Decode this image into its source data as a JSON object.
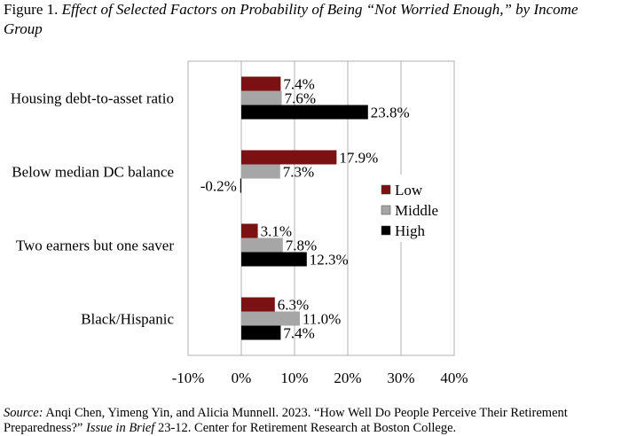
{
  "figure": {
    "label": "Figure 1.",
    "title": "Effect of Selected Factors on Probability of Being “Not Worried Enough,” by Income Group"
  },
  "source": {
    "prefix": "Source:",
    "text_1": " Anqi Chen, Yimeng Yin, and Alicia Munnell. 2023. “How Well Do People Perceive Their Retirement Preparedness?” ",
    "pub": "Issue in Brief",
    "text_2": " 23-12. Center for Retirement Research at Boston College."
  },
  "chart_data": {
    "type": "bar",
    "orientation": "horizontal",
    "categories": [
      "Housing debt-to-asset ratio",
      "Below median DC balance",
      "Two earners but one saver",
      "Black/Hispanic"
    ],
    "series": [
      {
        "name": "Low",
        "color": "#7b1113",
        "values": [
          7.4,
          17.9,
          3.1,
          6.3
        ]
      },
      {
        "name": "Middle",
        "color": "#a6a6a6",
        "values": [
          7.6,
          7.3,
          7.8,
          11.0
        ]
      },
      {
        "name": "High",
        "color": "#000000",
        "values": [
          23.8,
          -0.2,
          12.3,
          7.4
        ]
      }
    ],
    "value_labels": [
      [
        "7.4%",
        "7.6%",
        "23.8%"
      ],
      [
        "17.9%",
        "7.3%",
        "-0.2%"
      ],
      [
        "3.1%",
        "7.8%",
        "12.3%"
      ],
      [
        "6.3%",
        "11.0%",
        "7.4%"
      ]
    ],
    "xlim": [
      -10,
      40
    ],
    "xticks": [
      -10,
      0,
      10,
      20,
      30,
      40
    ],
    "xtick_labels": [
      "-10%",
      "0%",
      "10%",
      "20%",
      "30%",
      "40%"
    ],
    "grid": "vertical",
    "legend_position": "right"
  }
}
